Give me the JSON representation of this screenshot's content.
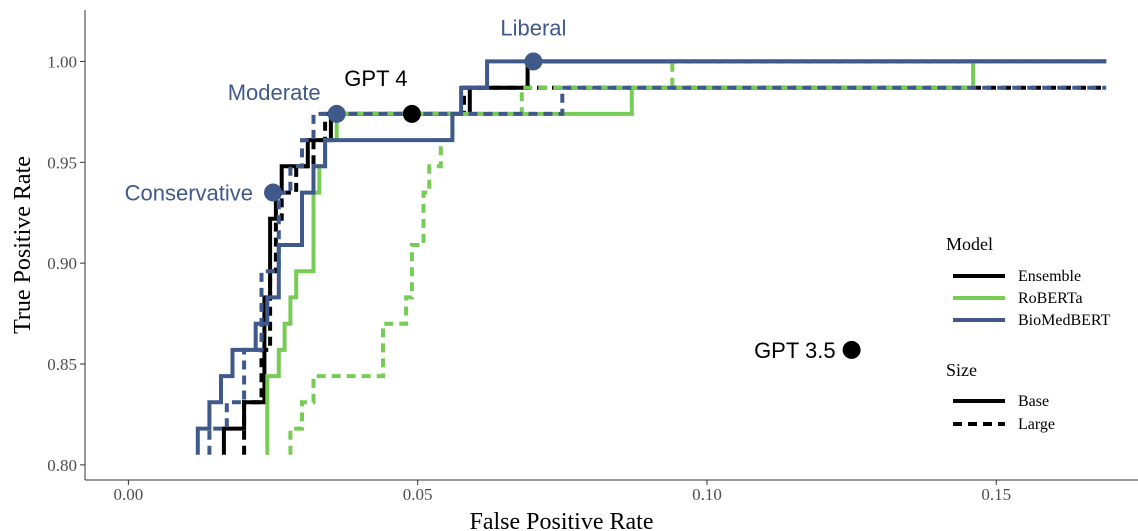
{
  "chart_data": {
    "type": "line",
    "title": "",
    "xlabel": "False Positive Rate",
    "ylabel": "True Positive Rate",
    "xlim": [
      -0.0075,
      0.1745
    ],
    "ylim": [
      0.7925,
      1.0255
    ],
    "x_ticks": [
      0.0,
      0.05,
      0.1,
      0.15
    ],
    "x_tick_labels": [
      "0.00",
      "0.05",
      "0.10",
      "0.15"
    ],
    "y_ticks": [
      0.8,
      0.85,
      0.9,
      0.95,
      1.0
    ],
    "y_tick_labels": [
      "0.80",
      "0.85",
      "0.90",
      "0.95",
      "1.00"
    ],
    "grid": false,
    "colors": {
      "Ensemble": "#000000",
      "RoBERTa": "#77cc55",
      "BioMedBERT": "#3f5a8a",
      "axis": "#333333",
      "tick_text": "#4d4d4d"
    },
    "legend": {
      "placement": "right",
      "model_title": "Model",
      "models": [
        "Ensemble",
        "RoBERTa",
        "BioMedBERT"
      ],
      "size_title": "Size",
      "sizes": [
        "Base",
        "Large"
      ]
    },
    "series": [
      {
        "model": "Ensemble",
        "size": "Base",
        "points": [
          [
            0.0165,
            0.805
          ],
          [
            0.0165,
            0.818
          ],
          [
            0.02,
            0.818
          ],
          [
            0.02,
            0.831
          ],
          [
            0.0235,
            0.831
          ],
          [
            0.0235,
            0.883
          ],
          [
            0.0245,
            0.883
          ],
          [
            0.0245,
            0.922
          ],
          [
            0.0255,
            0.922
          ],
          [
            0.0255,
            0.935
          ],
          [
            0.0265,
            0.935
          ],
          [
            0.0265,
            0.948
          ],
          [
            0.031,
            0.948
          ],
          [
            0.031,
            0.961
          ],
          [
            0.035,
            0.961
          ],
          [
            0.035,
            0.974
          ],
          [
            0.059,
            0.974
          ],
          [
            0.059,
            0.987
          ],
          [
            0.069,
            0.987
          ],
          [
            0.069,
            1.0
          ],
          [
            0.169,
            1.0
          ]
        ]
      },
      {
        "model": "Ensemble",
        "size": "Large",
        "points": [
          [
            0.02,
            0.805
          ],
          [
            0.02,
            0.831
          ],
          [
            0.023,
            0.831
          ],
          [
            0.023,
            0.857
          ],
          [
            0.0245,
            0.857
          ],
          [
            0.0245,
            0.896
          ],
          [
            0.0255,
            0.896
          ],
          [
            0.0255,
            0.922
          ],
          [
            0.0265,
            0.922
          ],
          [
            0.0265,
            0.935
          ],
          [
            0.029,
            0.935
          ],
          [
            0.029,
            0.948
          ],
          [
            0.032,
            0.948
          ],
          [
            0.032,
            0.961
          ],
          [
            0.034,
            0.961
          ],
          [
            0.034,
            0.974
          ],
          [
            0.058,
            0.974
          ],
          [
            0.058,
            0.987
          ],
          [
            0.169,
            0.987
          ]
        ]
      },
      {
        "model": "RoBERTa",
        "size": "Base",
        "points": [
          [
            0.024,
            0.805
          ],
          [
            0.024,
            0.844
          ],
          [
            0.026,
            0.844
          ],
          [
            0.026,
            0.857
          ],
          [
            0.027,
            0.857
          ],
          [
            0.027,
            0.87
          ],
          [
            0.028,
            0.87
          ],
          [
            0.028,
            0.883
          ],
          [
            0.029,
            0.883
          ],
          [
            0.029,
            0.896
          ],
          [
            0.032,
            0.896
          ],
          [
            0.032,
            0.935
          ],
          [
            0.033,
            0.935
          ],
          [
            0.033,
            0.948
          ],
          [
            0.034,
            0.948
          ],
          [
            0.034,
            0.961
          ],
          [
            0.036,
            0.961
          ],
          [
            0.036,
            0.974
          ],
          [
            0.087,
            0.974
          ],
          [
            0.087,
            0.987
          ],
          [
            0.146,
            0.987
          ],
          [
            0.146,
            1.0
          ],
          [
            0.169,
            1.0
          ]
        ]
      },
      {
        "model": "RoBERTa",
        "size": "Large",
        "points": [
          [
            0.028,
            0.805
          ],
          [
            0.028,
            0.818
          ],
          [
            0.03,
            0.818
          ],
          [
            0.03,
            0.831
          ],
          [
            0.032,
            0.831
          ],
          [
            0.032,
            0.844
          ],
          [
            0.044,
            0.844
          ],
          [
            0.044,
            0.87
          ],
          [
            0.048,
            0.87
          ],
          [
            0.048,
            0.883
          ],
          [
            0.049,
            0.883
          ],
          [
            0.049,
            0.909
          ],
          [
            0.051,
            0.909
          ],
          [
            0.051,
            0.935
          ],
          [
            0.052,
            0.935
          ],
          [
            0.052,
            0.948
          ],
          [
            0.054,
            0.948
          ],
          [
            0.054,
            0.961
          ],
          [
            0.056,
            0.961
          ],
          [
            0.056,
            0.974
          ],
          [
            0.068,
            0.974
          ],
          [
            0.068,
            0.987
          ],
          [
            0.094,
            0.987
          ],
          [
            0.094,
            1.0
          ],
          [
            0.169,
            1.0
          ]
        ]
      },
      {
        "model": "BioMedBERT",
        "size": "Base",
        "points": [
          [
            0.012,
            0.805
          ],
          [
            0.012,
            0.818
          ],
          [
            0.014,
            0.818
          ],
          [
            0.014,
            0.831
          ],
          [
            0.016,
            0.831
          ],
          [
            0.016,
            0.844
          ],
          [
            0.018,
            0.844
          ],
          [
            0.018,
            0.857
          ],
          [
            0.022,
            0.857
          ],
          [
            0.022,
            0.87
          ],
          [
            0.024,
            0.87
          ],
          [
            0.024,
            0.883
          ],
          [
            0.026,
            0.883
          ],
          [
            0.026,
            0.909
          ],
          [
            0.03,
            0.909
          ],
          [
            0.03,
            0.935
          ],
          [
            0.032,
            0.935
          ],
          [
            0.032,
            0.948
          ],
          [
            0.034,
            0.948
          ],
          [
            0.034,
            0.961
          ],
          [
            0.056,
            0.961
          ],
          [
            0.056,
            0.974
          ],
          [
            0.0575,
            0.974
          ],
          [
            0.0575,
            0.987
          ],
          [
            0.062,
            0.987
          ],
          [
            0.062,
            1.0
          ],
          [
            0.169,
            1.0
          ]
        ]
      },
      {
        "model": "BioMedBERT",
        "size": "Large",
        "points": [
          [
            0.014,
            0.805
          ],
          [
            0.014,
            0.818
          ],
          [
            0.017,
            0.818
          ],
          [
            0.017,
            0.831
          ],
          [
            0.02,
            0.831
          ],
          [
            0.02,
            0.857
          ],
          [
            0.023,
            0.857
          ],
          [
            0.023,
            0.896
          ],
          [
            0.026,
            0.896
          ],
          [
            0.026,
            0.935
          ],
          [
            0.028,
            0.935
          ],
          [
            0.028,
            0.948
          ],
          [
            0.03,
            0.948
          ],
          [
            0.03,
            0.961
          ],
          [
            0.032,
            0.961
          ],
          [
            0.032,
            0.974
          ],
          [
            0.075,
            0.974
          ],
          [
            0.075,
            0.987
          ],
          [
            0.169,
            0.987
          ]
        ]
      }
    ],
    "points": [
      {
        "label": "GPT 4",
        "x": 0.049,
        "y": 0.974,
        "color": "#000000",
        "label_color": "#000000"
      },
      {
        "label": "GPT 3.5",
        "x": 0.125,
        "y": 0.857,
        "color": "#000000",
        "label_color": "#000000"
      },
      {
        "label": "Liberal",
        "x": 0.07,
        "y": 1.0,
        "color": "#3f5a8a",
        "label_color": "#3f5a8a"
      },
      {
        "label": "Moderate",
        "x": 0.036,
        "y": 0.974,
        "color": "#3f5a8a",
        "label_color": "#3f5a8a"
      },
      {
        "label": "Conservative",
        "x": 0.025,
        "y": 0.935,
        "color": "#3f5a8a",
        "label_color": "#3f5a8a"
      }
    ]
  }
}
